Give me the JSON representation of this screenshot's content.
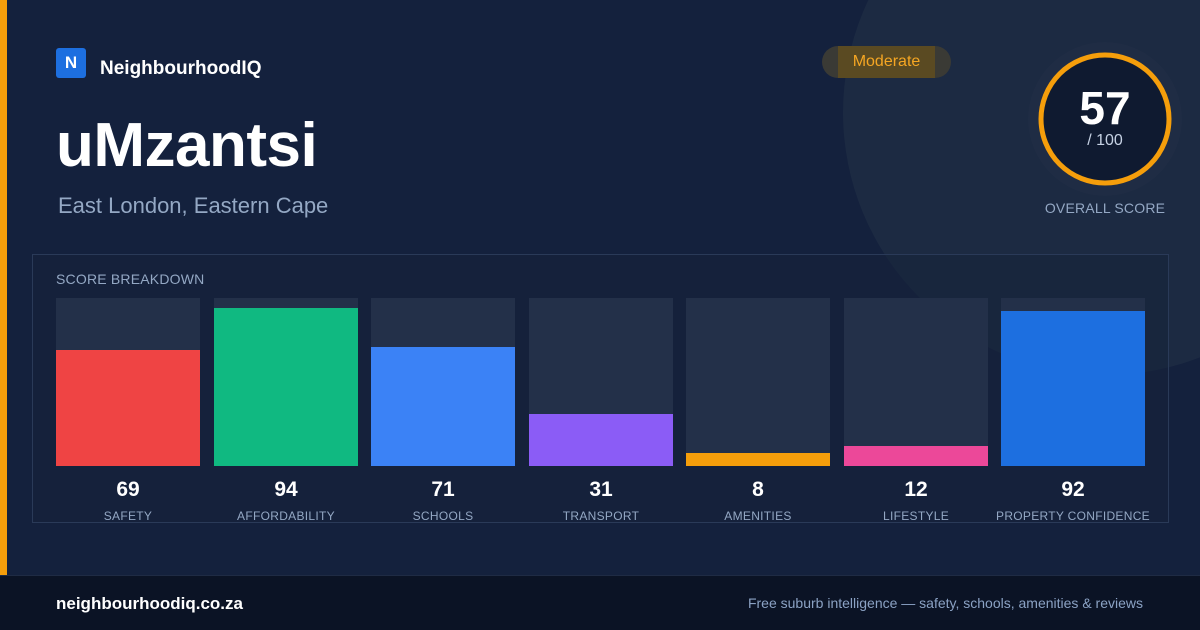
{
  "brand": {
    "logo_letter": "N",
    "name": "NeighbourhoodIQ",
    "logo_color": "#1d6fe0"
  },
  "suburb": {
    "name": "uMzantsi",
    "location": "East London, Eastern Cape"
  },
  "badge": {
    "label": "Moderate",
    "color": "#f5a623"
  },
  "overall": {
    "score": "57",
    "max": "/ 100",
    "score_number": 57,
    "caption": "OVERALL SCORE",
    "ring_color": "#f59e0b"
  },
  "chart_data": {
    "type": "bar",
    "title": "SCORE BREAKDOWN",
    "categories": [
      "SAFETY",
      "AFFORDABILITY",
      "SCHOOLS",
      "TRANSPORT",
      "AMENITIES",
      "LIFESTYLE",
      "PROPERTY CONFIDENCE"
    ],
    "values": [
      69,
      94,
      71,
      31,
      8,
      12,
      92
    ],
    "colors": [
      "#ef4444",
      "#10b981",
      "#3b82f6",
      "#8b5cf6",
      "#f59e0b",
      "#ec4899",
      "#1d6fe0"
    ],
    "ylim": [
      0,
      100
    ]
  },
  "footer": {
    "site": "neighbourhoodiq.co.za",
    "tagline": "Free suburb intelligence — safety, schools, amenities & reviews"
  }
}
